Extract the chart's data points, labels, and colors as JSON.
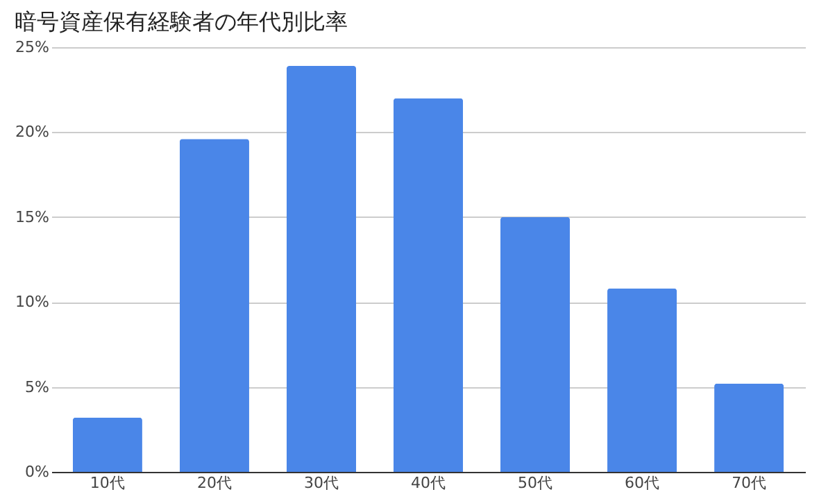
{
  "chart_data": {
    "type": "bar",
    "title": "暗号資産保有経験者の年代別比率",
    "categories": [
      "10代",
      "20代",
      "30代",
      "40代",
      "50代",
      "60代",
      "70代"
    ],
    "values": [
      3.2,
      19.6,
      23.9,
      22.0,
      15.0,
      10.8,
      5.2
    ],
    "color": "#4a86e8",
    "ylim": [
      0,
      25
    ],
    "yticks": [
      {
        "value": 0,
        "label": "0%"
      },
      {
        "value": 5,
        "label": "5%"
      },
      {
        "value": 10,
        "label": "10%"
      },
      {
        "value": 15,
        "label": "15%"
      },
      {
        "value": 20,
        "label": "20%"
      },
      {
        "value": 25,
        "label": "25%"
      }
    ],
    "grid": "y"
  }
}
